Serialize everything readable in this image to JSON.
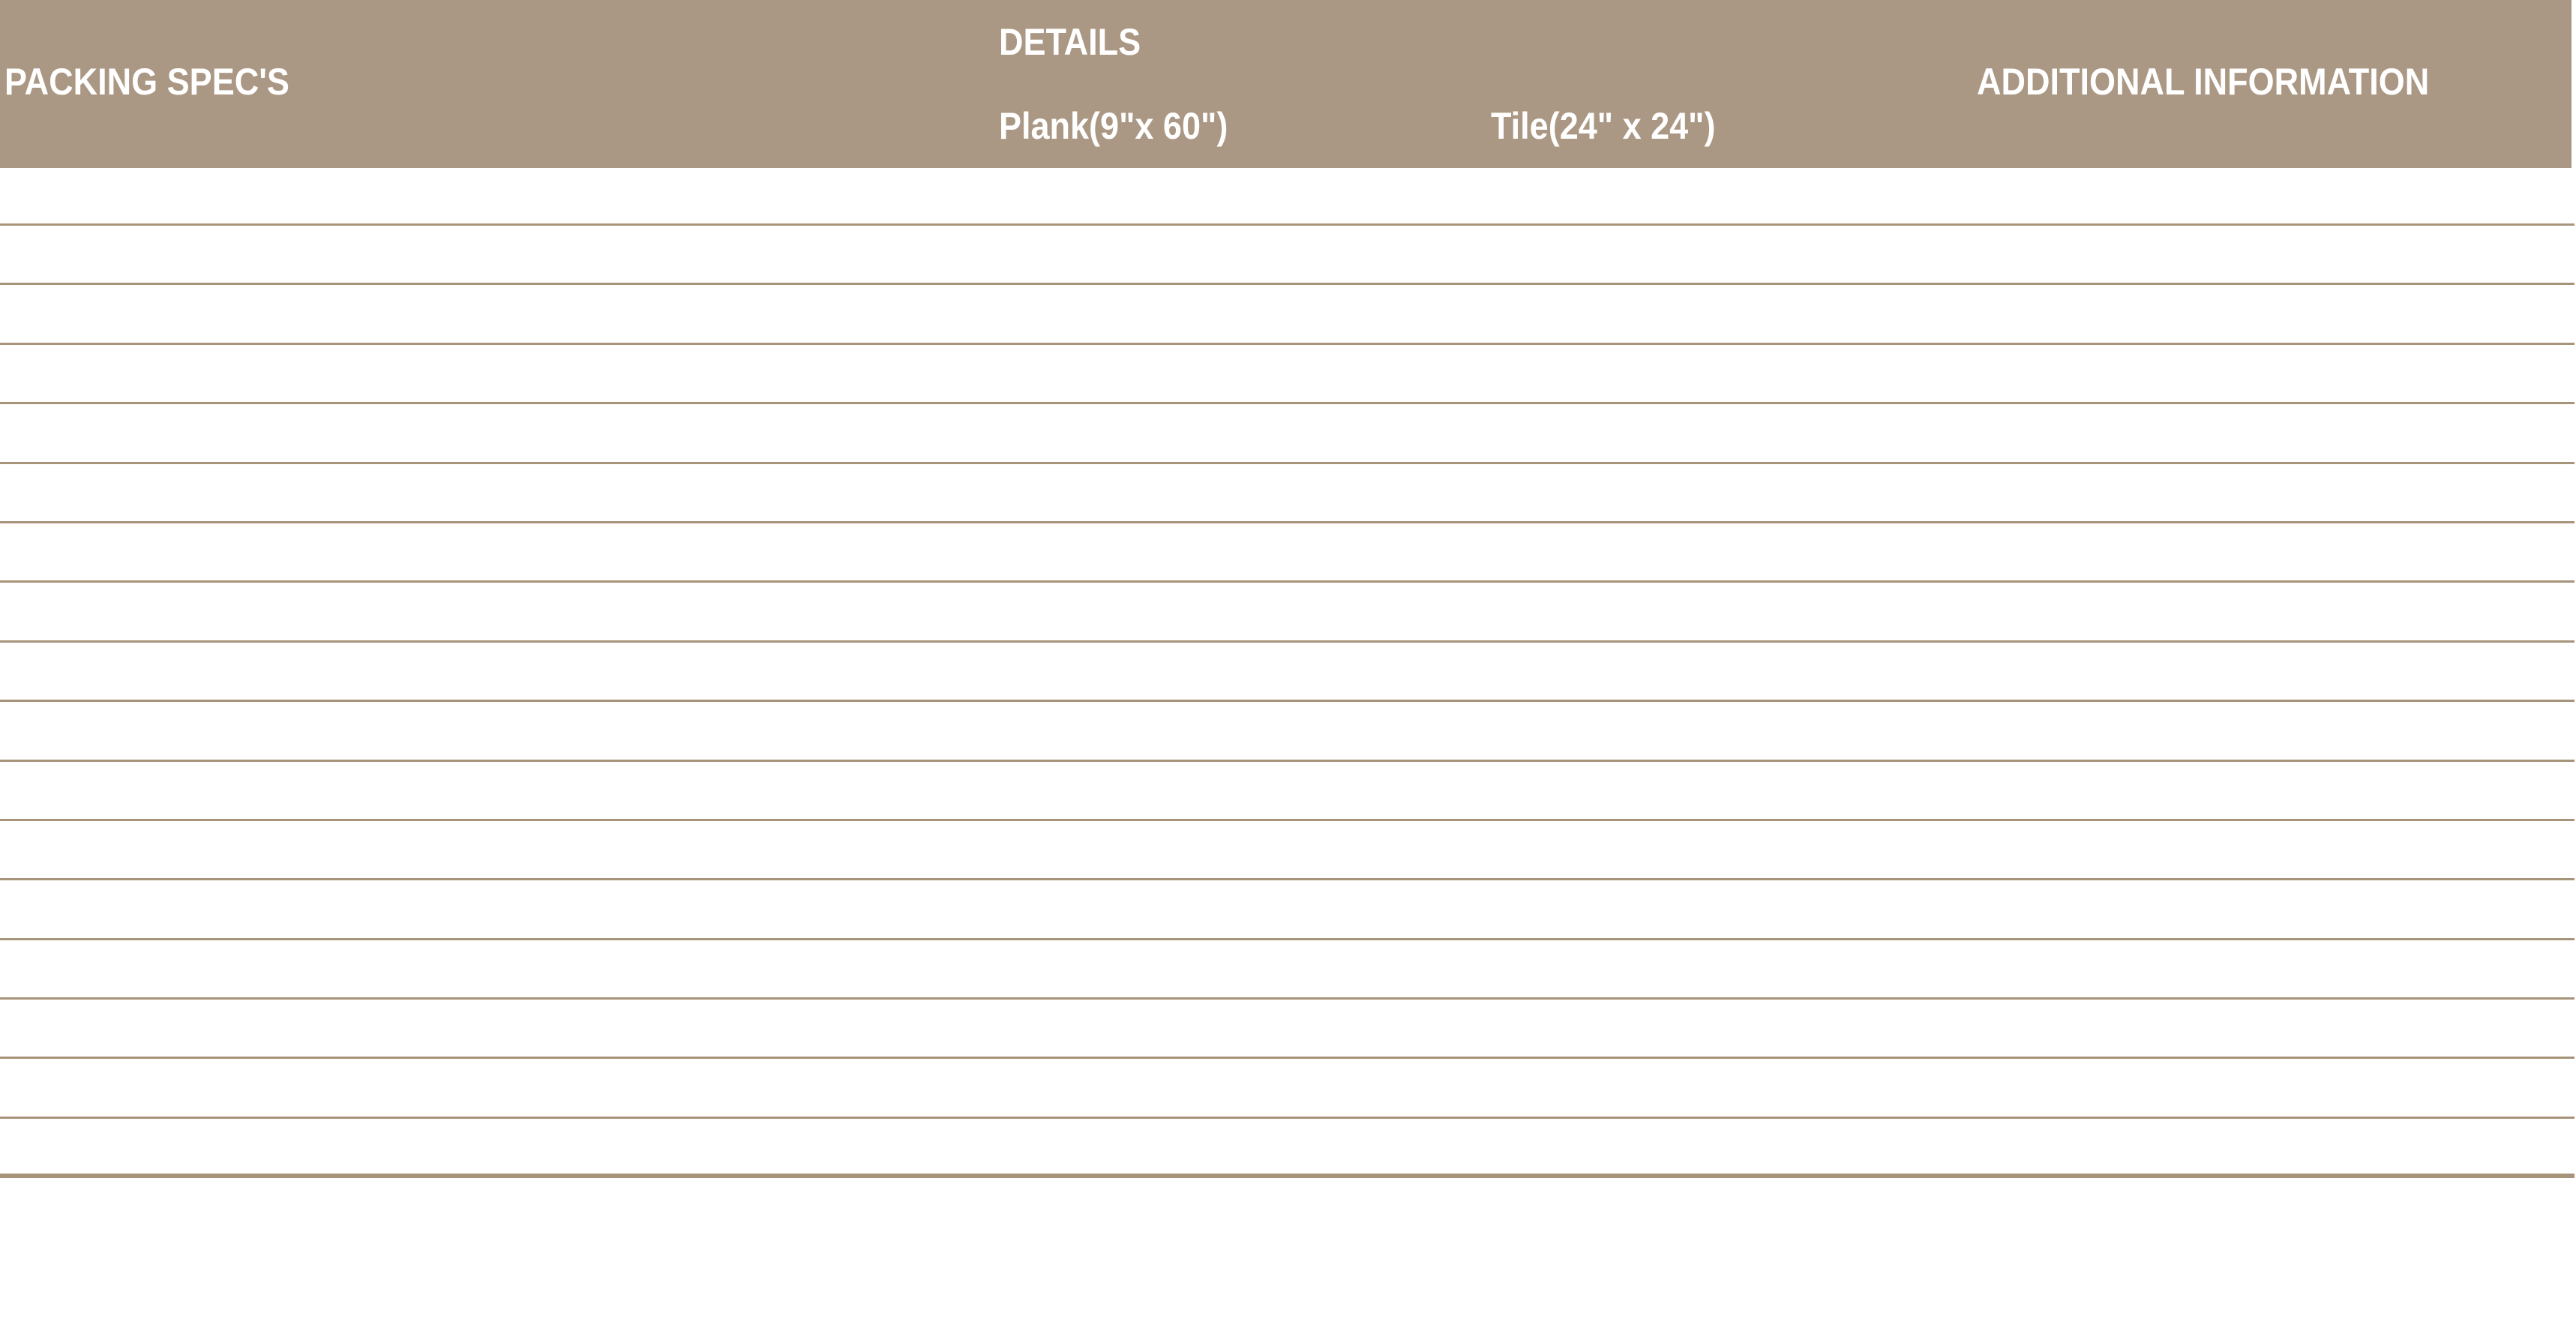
{
  "header": {
    "background_color": "#ab9884",
    "text_color": "#ffffff",
    "packing_specs_label": "PACKING SPEC'S",
    "details_label": "DETAILS",
    "plank_label": "Plank(9\"x 60\")",
    "tile_label": "Tile(24\" x 24\")",
    "additional_info_label": "ADDITIONAL INFORMATION"
  },
  "table": {
    "row_count": 17,
    "separator_color": "#a8947a",
    "rows_empty": true
  }
}
